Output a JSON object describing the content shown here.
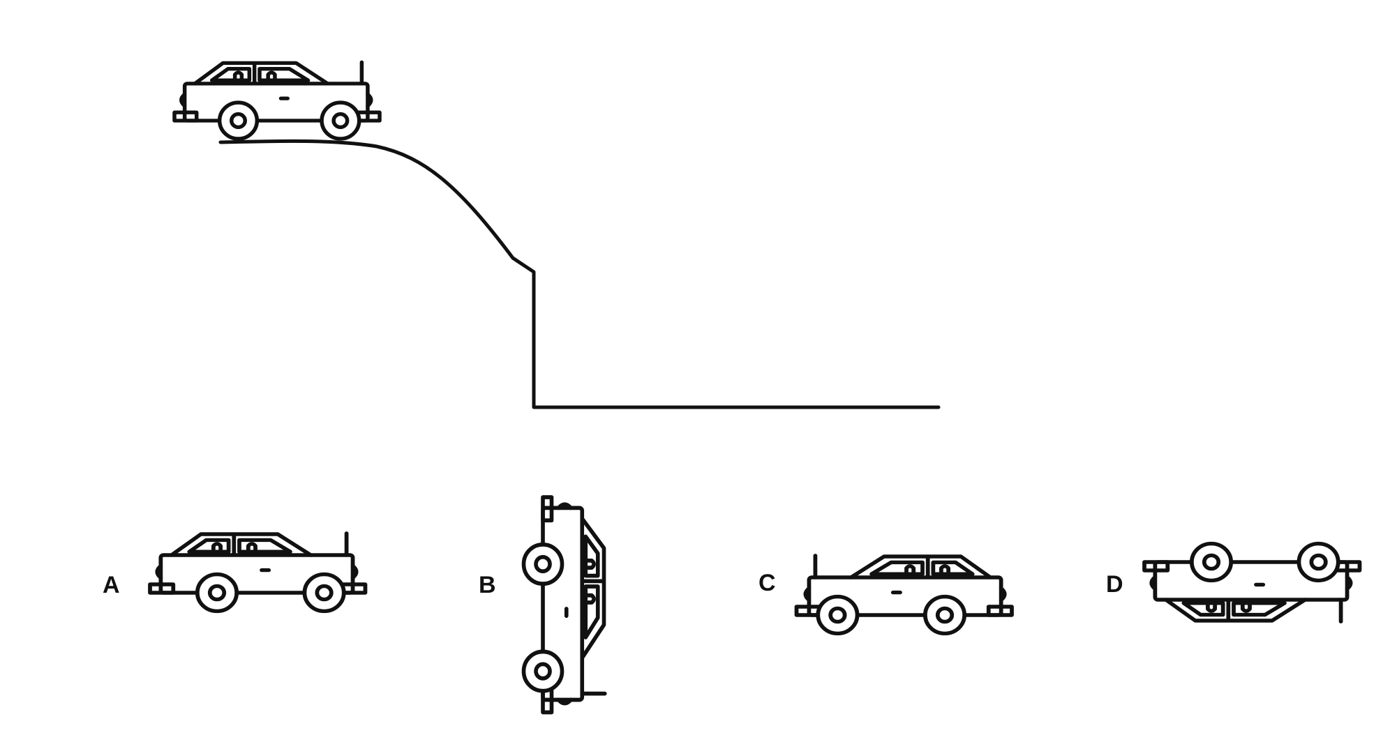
{
  "colors": {
    "background": "#ffffff",
    "line": "#111111"
  },
  "figure": {
    "reference_car": {
      "icon": "car-icon",
      "orientation": "upright-facing-right"
    },
    "track": {
      "shape": "curved-slope-then-vertical-drop-then-flat"
    }
  },
  "options": [
    {
      "label": "A",
      "icon": "car-icon",
      "orientation": "upright-facing-right"
    },
    {
      "label": "B",
      "icon": "car-icon",
      "orientation": "rotated-90-clockwise"
    },
    {
      "label": "C",
      "icon": "car-icon",
      "orientation": "upright-facing-left"
    },
    {
      "label": "D",
      "icon": "car-icon",
      "orientation": "upside-down"
    }
  ]
}
